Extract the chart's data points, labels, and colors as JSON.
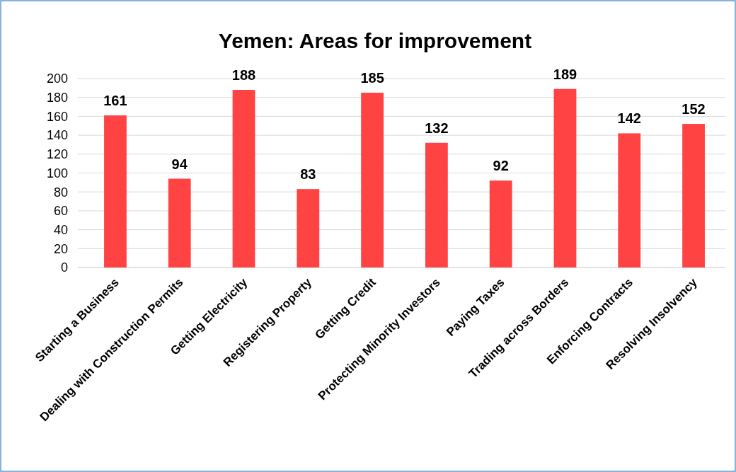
{
  "chart_data": {
    "type": "bar",
    "title": "Yemen: Areas for improvement",
    "categories": [
      "Starting a Business",
      "Dealing with Construction Permits",
      "Getting Electricity",
      "Registering Property",
      "Getting Credit",
      "Protecting Minority Investors",
      "Paying Taxes",
      "Trading across Borders",
      "Enforcing Contracts",
      "Resolving Insolvency"
    ],
    "values": [
      161,
      94,
      188,
      83,
      185,
      132,
      92,
      189,
      142,
      152
    ],
    "color": "#ff4343",
    "ylim": [
      0,
      200
    ],
    "yticks": [
      0,
      20,
      40,
      60,
      80,
      100,
      120,
      140,
      160,
      180,
      200
    ],
    "grid": "y",
    "data_labels": true
  }
}
